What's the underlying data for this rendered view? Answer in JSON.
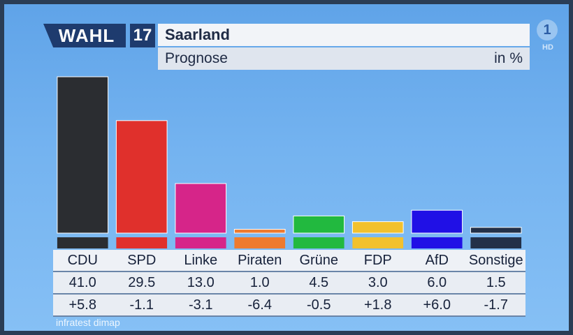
{
  "header": {
    "logo_text": "WAHL",
    "logo_number": "17",
    "title": "Saarland",
    "subtitle": "Prognose",
    "unit": "in %",
    "channel_logo": "1",
    "channel_badge": "HD"
  },
  "chart_data": {
    "type": "bar",
    "title": "Saarland",
    "subtitle": "Prognose",
    "ylabel": "in %",
    "categories": [
      "CDU",
      "SPD",
      "Linke",
      "Piraten",
      "Grüne",
      "FDP",
      "AfD",
      "Sonstige"
    ],
    "values": [
      41.0,
      29.5,
      13.0,
      1.0,
      4.5,
      3.0,
      6.0,
      1.5
    ],
    "value_labels": [
      "41.0",
      "29.5",
      "13.0",
      "1.0",
      "4.5",
      "3.0",
      "6.0",
      "1.5"
    ],
    "change_labels": [
      "+5.8",
      "-1.1",
      "-3.1",
      "-6.4",
      "-0.5",
      "+1.8",
      "+6.0",
      "-1.7"
    ],
    "colors": [
      "#2b2d31",
      "#e0302c",
      "#d62589",
      "#ee7a2f",
      "#22b93f",
      "#f2c12e",
      "#2010e6",
      "#233048"
    ],
    "ylim": [
      0,
      41.0
    ],
    "grid": false,
    "legend": "none"
  },
  "footer": {
    "source": "infratest dimap"
  }
}
